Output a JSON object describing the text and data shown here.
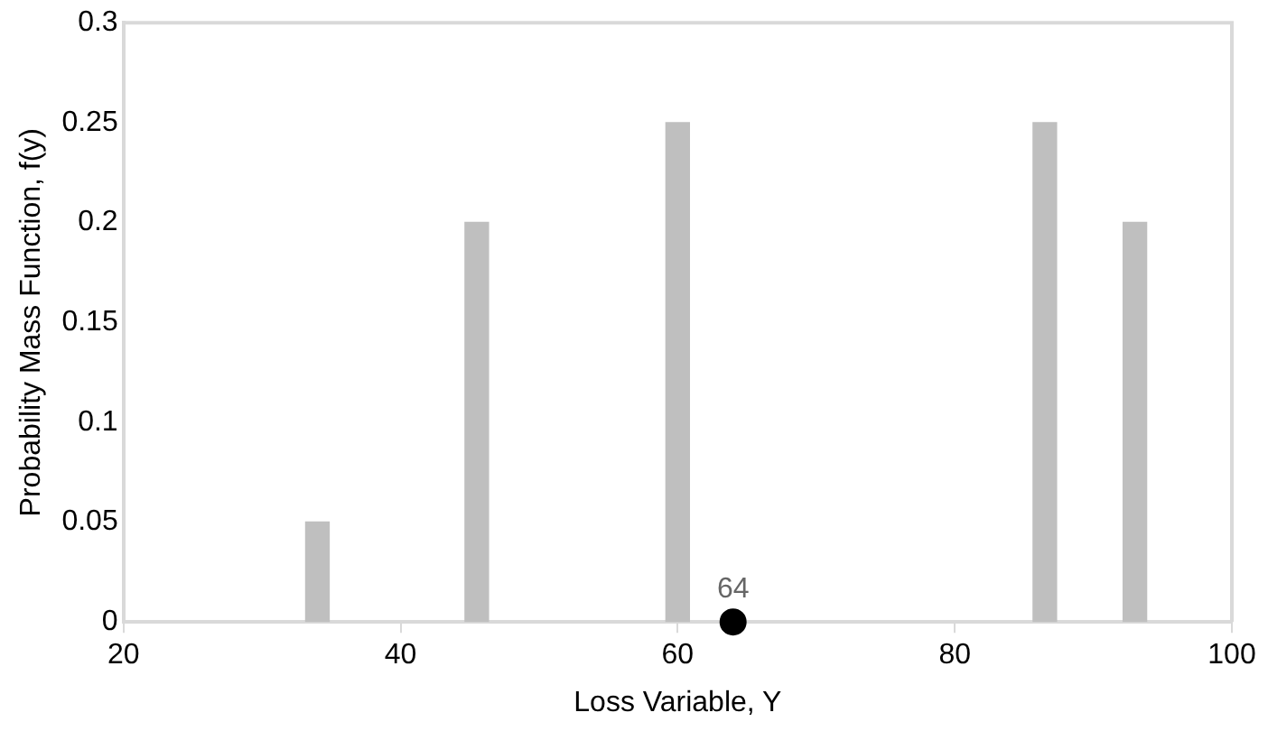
{
  "chart_data": {
    "type": "bar",
    "xlabel": "Loss Variable, Y",
    "ylabel": "Probability Mass Function, f(y)",
    "series": [
      {
        "color": "#bfbfbf",
        "x": [
          34,
          45.5,
          60,
          86.5,
          93
        ],
        "values": [
          0.05,
          0.2,
          0.25,
          0.25,
          0.2
        ]
      },
      {
        "type": "scatter",
        "color": "#000000",
        "x": [
          64
        ],
        "values": [
          0
        ],
        "marker": "circle"
      }
    ],
    "annotations": [
      {
        "text": "64",
        "x": 64,
        "y": 0
      }
    ],
    "xlim": [
      20,
      100
    ],
    "xticks": [
      20,
      40,
      60,
      80,
      100
    ],
    "ylim": [
      0,
      0.3
    ],
    "yticks": [
      0,
      0.05,
      0.1,
      0.15,
      0.2,
      0.25,
      0.3
    ],
    "grid": false,
    "legend": false
  }
}
